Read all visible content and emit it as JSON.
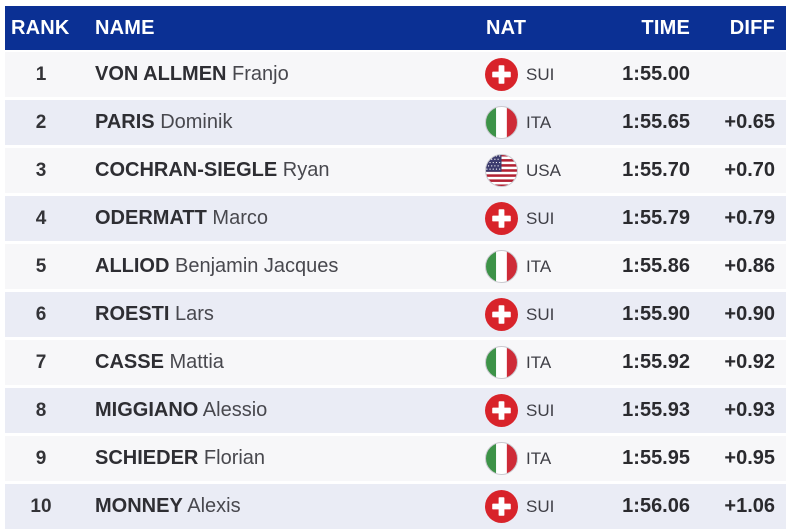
{
  "header": {
    "rank": "RANK",
    "name": "NAME",
    "nat": "NAT",
    "time": "TIME",
    "diff": "DIFF"
  },
  "colors": {
    "header_bg": "#0b3094",
    "header_text": "#ffffff",
    "row_odd_bg": "#f7f7f9",
    "row_even_bg": "#eaecf5",
    "rank_text": "#333337",
    "surname_text": "#2e2e33",
    "firstname_text": "#48484e",
    "nat_code_text": "#3f3f46",
    "time_text": "#2a2a2e",
    "diff_text": "#2a2a2e",
    "flag_border": "#c9c9cf",
    "flag_sui_red": "#d8232a",
    "flag_ita_green": "#3d9348",
    "flag_ita_red": "#ce2b37",
    "flag_usa_red": "#b22234",
    "flag_usa_blue": "#3c3b6e"
  },
  "rows": [
    {
      "rank": "1",
      "surname": "VON ALLMEN",
      "firstname": "Franjo",
      "nat": "SUI",
      "time": "1:55.00",
      "diff": ""
    },
    {
      "rank": "2",
      "surname": "PARIS",
      "firstname": "Dominik",
      "nat": "ITA",
      "time": "1:55.65",
      "diff": "+0.65"
    },
    {
      "rank": "3",
      "surname": "COCHRAN-SIEGLE",
      "firstname": "Ryan",
      "nat": "USA",
      "time": "1:55.70",
      "diff": "+0.70"
    },
    {
      "rank": "4",
      "surname": "ODERMATT",
      "firstname": "Marco",
      "nat": "SUI",
      "time": "1:55.79",
      "diff": "+0.79"
    },
    {
      "rank": "5",
      "surname": "ALLIOD",
      "firstname": "Benjamin Jacques",
      "nat": "ITA",
      "time": "1:55.86",
      "diff": "+0.86"
    },
    {
      "rank": "6",
      "surname": "ROESTI",
      "firstname": "Lars",
      "nat": "SUI",
      "time": "1:55.90",
      "diff": "+0.90"
    },
    {
      "rank": "7",
      "surname": "CASSE",
      "firstname": "Mattia",
      "nat": "ITA",
      "time": "1:55.92",
      "diff": "+0.92"
    },
    {
      "rank": "8",
      "surname": "MIGGIANO",
      "firstname": "Alessio",
      "nat": "SUI",
      "time": "1:55.93",
      "diff": "+0.93"
    },
    {
      "rank": "9",
      "surname": "SCHIEDER",
      "firstname": "Florian",
      "nat": "ITA",
      "time": "1:55.95",
      "diff": "+0.95"
    },
    {
      "rank": "10",
      "surname": "MONNEY",
      "firstname": "Alexis",
      "nat": "SUI",
      "time": "1:56.06",
      "diff": "+1.06"
    }
  ]
}
